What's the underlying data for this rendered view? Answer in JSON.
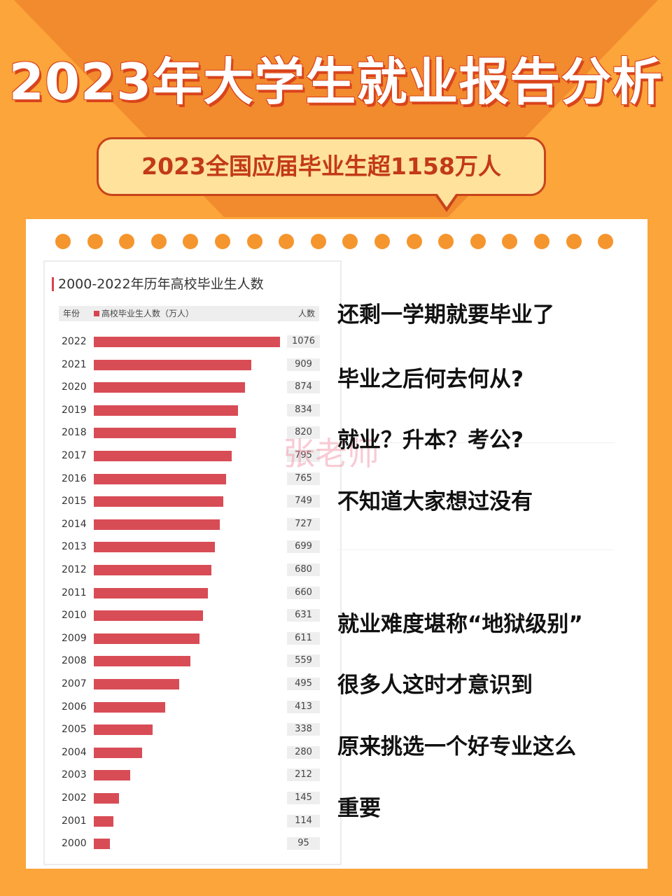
{
  "header": {
    "title": "2023年大学生就业报告分析",
    "bubble": "2023全国应届毕业生超1158万人"
  },
  "colors": {
    "background": "#fba53a",
    "accent": "#f08a2c",
    "bar": "#d84c56",
    "title_shadow": "#d9441c"
  },
  "watermark": "张老师",
  "chart_data": {
    "type": "bar",
    "orientation": "horizontal",
    "title": "2000-2022年历年高校毕业生人数",
    "header": {
      "year": "年份",
      "legend": "高校毕业生人数（万人）",
      "count": "人数"
    },
    "series": [
      {
        "name": "高校毕业生人数（万人）"
      }
    ],
    "categories": [
      "2022",
      "2021",
      "2020",
      "2019",
      "2018",
      "2017",
      "2016",
      "2015",
      "2014",
      "2013",
      "2012",
      "2011",
      "2010",
      "2009",
      "2008",
      "2007",
      "2006",
      "2005",
      "2004",
      "2003",
      "2002",
      "2001",
      "2000"
    ],
    "values": [
      1076,
      909,
      874,
      834,
      820,
      795,
      765,
      749,
      727,
      699,
      680,
      660,
      631,
      611,
      559,
      495,
      413,
      338,
      280,
      212,
      145,
      114,
      95
    ]
  },
  "text_lines": [
    "还剩一学期就要毕业了",
    "毕业之后何去何从?",
    "就业？升本？考公?",
    "不知道大家想过没有",
    "就业难度堪称“地狱级别”",
    "很多人这时才意识到",
    "原来挑选一个好专业这么",
    "重要"
  ]
}
